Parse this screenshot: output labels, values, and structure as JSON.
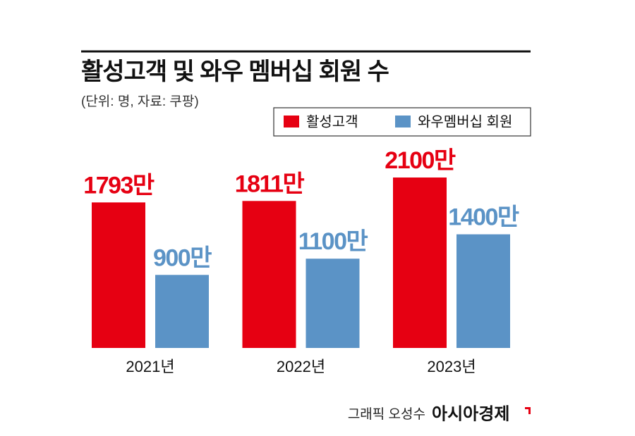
{
  "chart_data": {
    "type": "bar",
    "title": "활성고객 및 와우 멤버십 회원 수",
    "subtitle": "(단위: 명, 자료: 쿠팡)",
    "categories": [
      "2021년",
      "2022년",
      "2023년"
    ],
    "series": [
      {
        "name": "활성고객",
        "color": "#e60012",
        "values": [
          1793,
          1811,
          2100
        ],
        "value_labels": [
          "1793만",
          "1811만",
          "2100만"
        ]
      },
      {
        "name": "와우멤버십 회원",
        "color": "#5b93c6",
        "values": [
          900,
          1100,
          1400
        ],
        "value_labels": [
          "900만",
          "1100만",
          "1400만"
        ]
      }
    ],
    "credit": "그래픽 오성수",
    "source_brand": "아시아경제"
  }
}
